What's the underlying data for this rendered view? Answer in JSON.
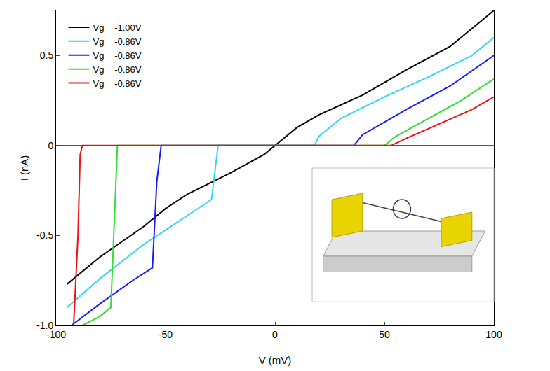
{
  "chart_data": {
    "type": "line",
    "x_label": "V (mV)",
    "y_label": "I (nA)",
    "xlim": [
      -100,
      100
    ],
    "xticks": [
      -100,
      -50,
      0,
      50,
      100
    ],
    "ylim": [
      -1.0,
      0.75
    ],
    "yticks": [
      {
        "value": -1.0,
        "label": "-1.0"
      },
      -0.5,
      0,
      0.5
    ],
    "grid": false,
    "legend": "top-left",
    "series": [
      {
        "name": "Vg = -1.00V",
        "color": "#000000",
        "x": [
          -95,
          -80,
          -60,
          -50,
          -40,
          -20,
          -5,
          0,
          10,
          20,
          40,
          60,
          80,
          100
        ],
        "values": [
          -0.77,
          -0.62,
          -0.45,
          -0.35,
          -0.27,
          -0.15,
          -0.05,
          0,
          0.1,
          0.17,
          0.28,
          0.42,
          0.55,
          0.75
        ]
      },
      {
        "name": "Vg = -0.86V",
        "color": "#33d6f0",
        "x": [
          -95,
          -80,
          -60,
          -40,
          -29,
          -27,
          -26,
          0,
          18,
          20,
          30,
          50,
          70,
          90,
          100
        ],
        "values": [
          -0.9,
          -0.74,
          -0.55,
          -0.39,
          -0.3,
          -0.1,
          0,
          0,
          0,
          0.05,
          0.15,
          0.27,
          0.38,
          0.5,
          0.6
        ]
      },
      {
        "name": "Vg = -0.86V",
        "color": "#1a1aff",
        "x": [
          -93,
          -80,
          -65,
          -56,
          -54,
          -52,
          0,
          36,
          40,
          60,
          80,
          100
        ],
        "values": [
          -1.0,
          -0.88,
          -0.75,
          -0.68,
          -0.2,
          0,
          0,
          0,
          0.06,
          0.2,
          0.33,
          0.5
        ]
      },
      {
        "name": "Vg = -0.86V",
        "color": "#33dd33",
        "x": [
          -88,
          -80,
          -75,
          -73,
          -72,
          0,
          50,
          55,
          70,
          85,
          100
        ],
        "values": [
          -1.0,
          -0.95,
          -0.9,
          -0.3,
          0,
          0,
          0,
          0.05,
          0.15,
          0.25,
          0.37
        ]
      },
      {
        "name": "Vg = -0.86V",
        "color": "#ee1111",
        "x": [
          -92,
          -90,
          -89,
          -88,
          0,
          53,
          60,
          75,
          90,
          100
        ],
        "values": [
          -1.0,
          -0.5,
          -0.05,
          0,
          0,
          0,
          0.04,
          0.12,
          0.2,
          0.27
        ]
      }
    ]
  }
}
